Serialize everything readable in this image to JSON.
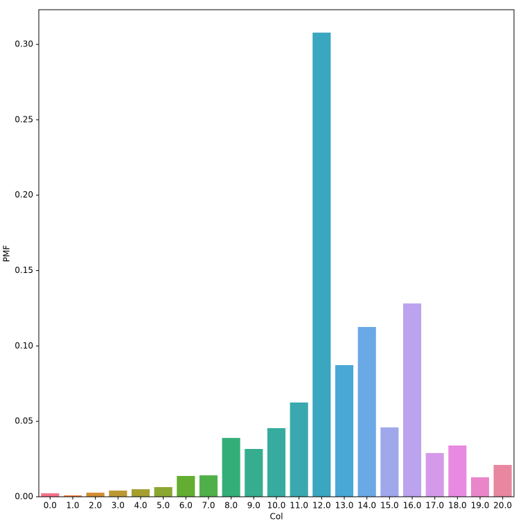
{
  "chart_data": {
    "type": "bar",
    "xlabel": "Col",
    "ylabel": "PMF",
    "categories": [
      "0.0",
      "1.0",
      "2.0",
      "3.0",
      "4.0",
      "5.0",
      "6.0",
      "7.0",
      "8.0",
      "9.0",
      "10.0",
      "11.0",
      "12.0",
      "13.0",
      "14.0",
      "15.0",
      "16.0",
      "17.0",
      "18.0",
      "19.0",
      "20.0"
    ],
    "values": [
      0.0023,
      0.0009,
      0.0027,
      0.0041,
      0.005,
      0.0064,
      0.0138,
      0.0142,
      0.039,
      0.0317,
      0.0455,
      0.0625,
      0.3078,
      0.0873,
      0.1126,
      0.046,
      0.1282,
      0.029,
      0.034,
      0.0129,
      0.0211
    ],
    "colors": [
      "#f77189",
      "#f27b3a",
      "#d28d32",
      "#bb9832",
      "#a59f31",
      "#8ca731",
      "#63ae31",
      "#4fb04a",
      "#34ae78",
      "#36ad8f",
      "#37aba0",
      "#39a9af",
      "#3aa6bf",
      "#4aa8d6",
      "#6aa8e6",
      "#a0a8ec",
      "#bca3ee",
      "#d49ae9",
      "#e88ae2",
      "#e986ca",
      "#e8879f"
    ],
    "ylim": [
      0,
      0.323
    ],
    "yticks": [
      {
        "value": 0,
        "label": "0.00"
      },
      {
        "value": 0.05,
        "label": "0.05"
      },
      {
        "value": 0.1,
        "label": "0.10"
      },
      {
        "value": 0.15,
        "label": "0.15"
      },
      {
        "value": 0.2,
        "label": "0.20"
      },
      {
        "value": 0.25,
        "label": "0.25"
      },
      {
        "value": 0.3,
        "label": "0.30"
      }
    ]
  }
}
